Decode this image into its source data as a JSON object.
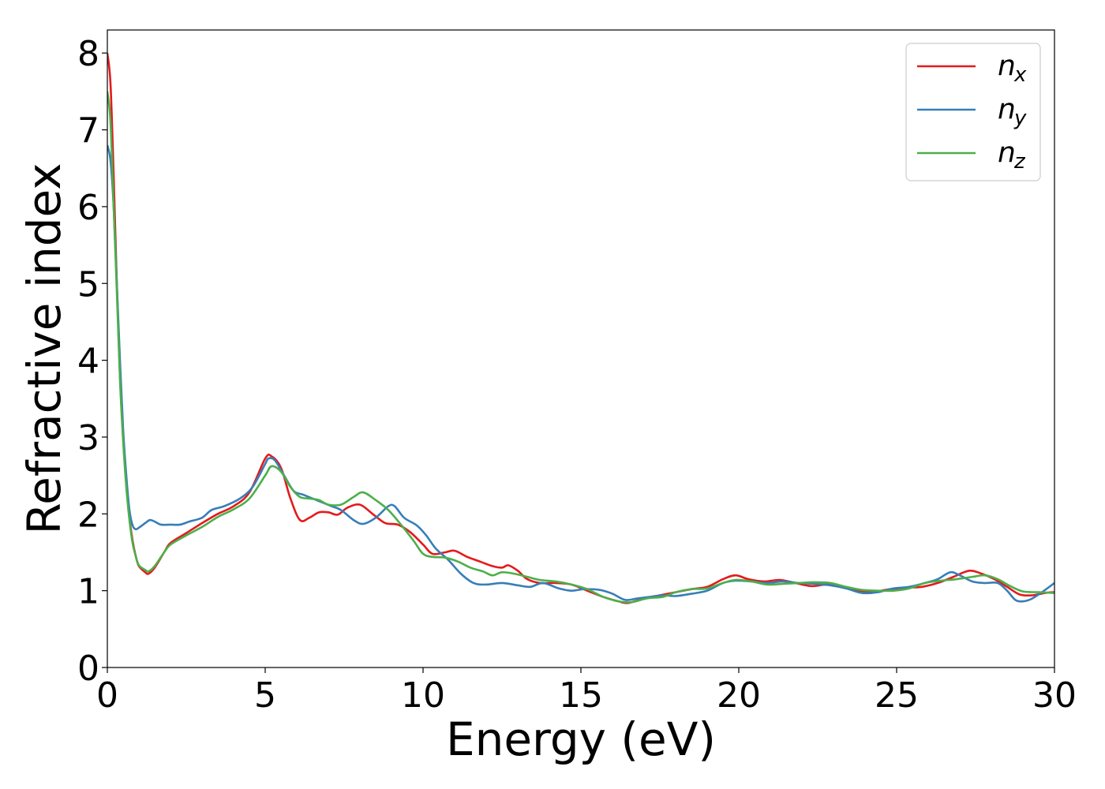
{
  "chart_data": {
    "type": "line",
    "xlabel": "Energy (eV)",
    "ylabel": "Refractive index",
    "xlim": [
      0,
      30
    ],
    "ylim": [
      0,
      8.3
    ],
    "xticks": [
      "0",
      "5",
      "10",
      "15",
      "20",
      "25",
      "30"
    ],
    "yticks": [
      "0",
      "1",
      "2",
      "3",
      "4",
      "5",
      "6",
      "7",
      "8"
    ],
    "grid": false,
    "legend_position": "top-right",
    "series": [
      {
        "name": "n",
        "subscript": "x",
        "color": "#e41a1c",
        "points": [
          [
            0,
            8.0
          ],
          [
            0.1,
            7.6
          ],
          [
            0.2,
            6.4
          ],
          [
            0.3,
            5.0
          ],
          [
            0.4,
            3.8
          ],
          [
            0.5,
            3.0
          ],
          [
            0.6,
            2.4
          ],
          [
            0.7,
            1.95
          ],
          [
            0.8,
            1.65
          ],
          [
            0.9,
            1.45
          ],
          [
            1.0,
            1.32
          ],
          [
            1.2,
            1.24
          ],
          [
            1.3,
            1.22
          ],
          [
            1.5,
            1.3
          ],
          [
            1.8,
            1.5
          ],
          [
            2.0,
            1.62
          ],
          [
            2.5,
            1.75
          ],
          [
            3.0,
            1.88
          ],
          [
            3.5,
            2.0
          ],
          [
            4.0,
            2.1
          ],
          [
            4.5,
            2.28
          ],
          [
            5.0,
            2.72
          ],
          [
            5.2,
            2.75
          ],
          [
            5.5,
            2.6
          ],
          [
            5.8,
            2.2
          ],
          [
            6.1,
            1.92
          ],
          [
            6.4,
            1.95
          ],
          [
            6.7,
            2.02
          ],
          [
            7.0,
            2.02
          ],
          [
            7.3,
            1.99
          ],
          [
            7.6,
            2.08
          ],
          [
            8.0,
            2.12
          ],
          [
            8.4,
            2.0
          ],
          [
            8.8,
            1.88
          ],
          [
            9.2,
            1.86
          ],
          [
            9.6,
            1.76
          ],
          [
            10.0,
            1.6
          ],
          [
            10.3,
            1.48
          ],
          [
            10.7,
            1.5
          ],
          [
            11.0,
            1.52
          ],
          [
            11.4,
            1.44
          ],
          [
            11.8,
            1.38
          ],
          [
            12.2,
            1.32
          ],
          [
            12.5,
            1.3
          ],
          [
            12.7,
            1.33
          ],
          [
            13.0,
            1.26
          ],
          [
            13.3,
            1.15
          ],
          [
            13.7,
            1.1
          ],
          [
            14.2,
            1.1
          ],
          [
            14.7,
            1.08
          ],
          [
            15.2,
            1.0
          ],
          [
            15.7,
            0.92
          ],
          [
            16.2,
            0.86
          ],
          [
            16.5,
            0.84
          ],
          [
            17.0,
            0.9
          ],
          [
            17.5,
            0.94
          ],
          [
            18.0,
            0.98
          ],
          [
            18.5,
            1.02
          ],
          [
            19.0,
            1.05
          ],
          [
            19.5,
            1.15
          ],
          [
            19.9,
            1.2
          ],
          [
            20.3,
            1.15
          ],
          [
            20.8,
            1.12
          ],
          [
            21.3,
            1.14
          ],
          [
            21.8,
            1.1
          ],
          [
            22.3,
            1.06
          ],
          [
            22.8,
            1.08
          ],
          [
            23.3,
            1.05
          ],
          [
            23.8,
            1.0
          ],
          [
            24.3,
            0.99
          ],
          [
            24.8,
            1.02
          ],
          [
            25.3,
            1.04
          ],
          [
            25.8,
            1.05
          ],
          [
            26.3,
            1.1
          ],
          [
            26.8,
            1.18
          ],
          [
            27.3,
            1.26
          ],
          [
            27.7,
            1.22
          ],
          [
            28.1,
            1.15
          ],
          [
            28.5,
            1.05
          ],
          [
            28.9,
            0.95
          ],
          [
            29.3,
            0.94
          ],
          [
            29.7,
            0.97
          ],
          [
            30.0,
            0.98
          ]
        ]
      },
      {
        "name": "n",
        "subscript": "y",
        "color": "#377eb8",
        "points": [
          [
            0,
            6.8
          ],
          [
            0.1,
            6.6
          ],
          [
            0.2,
            6.0
          ],
          [
            0.3,
            5.0
          ],
          [
            0.4,
            4.0
          ],
          [
            0.5,
            3.1
          ],
          [
            0.6,
            2.5
          ],
          [
            0.7,
            2.05
          ],
          [
            0.8,
            1.85
          ],
          [
            0.9,
            1.8
          ],
          [
            1.0,
            1.82
          ],
          [
            1.2,
            1.88
          ],
          [
            1.35,
            1.92
          ],
          [
            1.5,
            1.9
          ],
          [
            1.7,
            1.86
          ],
          [
            2.0,
            1.86
          ],
          [
            2.3,
            1.86
          ],
          [
            2.6,
            1.9
          ],
          [
            3.0,
            1.95
          ],
          [
            3.3,
            2.05
          ],
          [
            3.7,
            2.1
          ],
          [
            4.2,
            2.2
          ],
          [
            4.6,
            2.35
          ],
          [
            5.0,
            2.65
          ],
          [
            5.1,
            2.72
          ],
          [
            5.3,
            2.7
          ],
          [
            5.6,
            2.5
          ],
          [
            5.9,
            2.3
          ],
          [
            6.2,
            2.25
          ],
          [
            6.5,
            2.2
          ],
          [
            6.8,
            2.15
          ],
          [
            7.1,
            2.1
          ],
          [
            7.4,
            2.05
          ],
          [
            7.8,
            1.92
          ],
          [
            8.1,
            1.87
          ],
          [
            8.5,
            1.95
          ],
          [
            8.9,
            2.1
          ],
          [
            9.1,
            2.1
          ],
          [
            9.4,
            1.95
          ],
          [
            9.8,
            1.85
          ],
          [
            10.1,
            1.72
          ],
          [
            10.4,
            1.55
          ],
          [
            10.8,
            1.4
          ],
          [
            11.2,
            1.22
          ],
          [
            11.6,
            1.1
          ],
          [
            12.0,
            1.08
          ],
          [
            12.5,
            1.1
          ],
          [
            13.0,
            1.07
          ],
          [
            13.4,
            1.05
          ],
          [
            13.8,
            1.1
          ],
          [
            14.3,
            1.03
          ],
          [
            14.7,
            1.0
          ],
          [
            15.1,
            1.02
          ],
          [
            15.6,
            1.01
          ],
          [
            16.0,
            0.96
          ],
          [
            16.4,
            0.88
          ],
          [
            16.8,
            0.9
          ],
          [
            17.2,
            0.92
          ],
          [
            17.6,
            0.94
          ],
          [
            18.0,
            0.93
          ],
          [
            18.5,
            0.96
          ],
          [
            19.0,
            1.0
          ],
          [
            19.5,
            1.1
          ],
          [
            19.9,
            1.13
          ],
          [
            20.4,
            1.12
          ],
          [
            20.9,
            1.1
          ],
          [
            21.4,
            1.12
          ],
          [
            21.9,
            1.1
          ],
          [
            22.4,
            1.09
          ],
          [
            22.9,
            1.07
          ],
          [
            23.4,
            1.03
          ],
          [
            23.9,
            0.97
          ],
          [
            24.4,
            0.98
          ],
          [
            24.9,
            1.03
          ],
          [
            25.4,
            1.05
          ],
          [
            25.9,
            1.1
          ],
          [
            26.3,
            1.15
          ],
          [
            26.7,
            1.24
          ],
          [
            27.0,
            1.2
          ],
          [
            27.4,
            1.12
          ],
          [
            27.8,
            1.1
          ],
          [
            28.2,
            1.1
          ],
          [
            28.5,
            1.0
          ],
          [
            28.8,
            0.87
          ],
          [
            29.2,
            0.88
          ],
          [
            29.6,
            0.98
          ],
          [
            30.0,
            1.1
          ]
        ]
      },
      {
        "name": "n",
        "subscript": "z",
        "color": "#4daf4a",
        "points": [
          [
            0,
            7.5
          ],
          [
            0.1,
            7.1
          ],
          [
            0.2,
            6.0
          ],
          [
            0.3,
            4.9
          ],
          [
            0.4,
            3.75
          ],
          [
            0.5,
            2.95
          ],
          [
            0.6,
            2.35
          ],
          [
            0.7,
            1.92
          ],
          [
            0.8,
            1.62
          ],
          [
            0.9,
            1.45
          ],
          [
            1.0,
            1.33
          ],
          [
            1.2,
            1.27
          ],
          [
            1.3,
            1.25
          ],
          [
            1.5,
            1.32
          ],
          [
            1.8,
            1.5
          ],
          [
            2.0,
            1.6
          ],
          [
            2.5,
            1.72
          ],
          [
            3.0,
            1.83
          ],
          [
            3.5,
            1.96
          ],
          [
            4.0,
            2.06
          ],
          [
            4.5,
            2.2
          ],
          [
            5.0,
            2.5
          ],
          [
            5.2,
            2.62
          ],
          [
            5.5,
            2.55
          ],
          [
            5.8,
            2.35
          ],
          [
            6.1,
            2.22
          ],
          [
            6.4,
            2.2
          ],
          [
            6.7,
            2.18
          ],
          [
            7.0,
            2.12
          ],
          [
            7.4,
            2.12
          ],
          [
            7.8,
            2.22
          ],
          [
            8.1,
            2.28
          ],
          [
            8.5,
            2.18
          ],
          [
            8.9,
            2.05
          ],
          [
            9.3,
            1.86
          ],
          [
            9.7,
            1.65
          ],
          [
            10.0,
            1.48
          ],
          [
            10.3,
            1.44
          ],
          [
            10.7,
            1.43
          ],
          [
            11.1,
            1.38
          ],
          [
            11.5,
            1.3
          ],
          [
            11.9,
            1.25
          ],
          [
            12.2,
            1.2
          ],
          [
            12.5,
            1.24
          ],
          [
            12.9,
            1.22
          ],
          [
            13.3,
            1.18
          ],
          [
            13.7,
            1.14
          ],
          [
            14.2,
            1.12
          ],
          [
            14.7,
            1.08
          ],
          [
            15.2,
            1.02
          ],
          [
            15.7,
            0.92
          ],
          [
            16.2,
            0.86
          ],
          [
            16.6,
            0.85
          ],
          [
            17.1,
            0.9
          ],
          [
            17.6,
            0.92
          ],
          [
            18.0,
            0.98
          ],
          [
            18.5,
            1.02
          ],
          [
            19.0,
            1.03
          ],
          [
            19.5,
            1.1
          ],
          [
            19.9,
            1.14
          ],
          [
            20.4,
            1.12
          ],
          [
            20.9,
            1.08
          ],
          [
            21.4,
            1.09
          ],
          [
            21.9,
            1.1
          ],
          [
            22.4,
            1.11
          ],
          [
            22.9,
            1.1
          ],
          [
            23.4,
            1.05
          ],
          [
            23.9,
            1.01
          ],
          [
            24.4,
            1.0
          ],
          [
            24.9,
            1.0
          ],
          [
            25.4,
            1.03
          ],
          [
            25.9,
            1.1
          ],
          [
            26.4,
            1.13
          ],
          [
            26.9,
            1.15
          ],
          [
            27.4,
            1.18
          ],
          [
            27.8,
            1.2
          ],
          [
            28.2,
            1.15
          ],
          [
            28.6,
            1.06
          ],
          [
            29.0,
            0.99
          ],
          [
            29.5,
            0.98
          ],
          [
            30.0,
            0.97
          ]
        ]
      }
    ]
  }
}
